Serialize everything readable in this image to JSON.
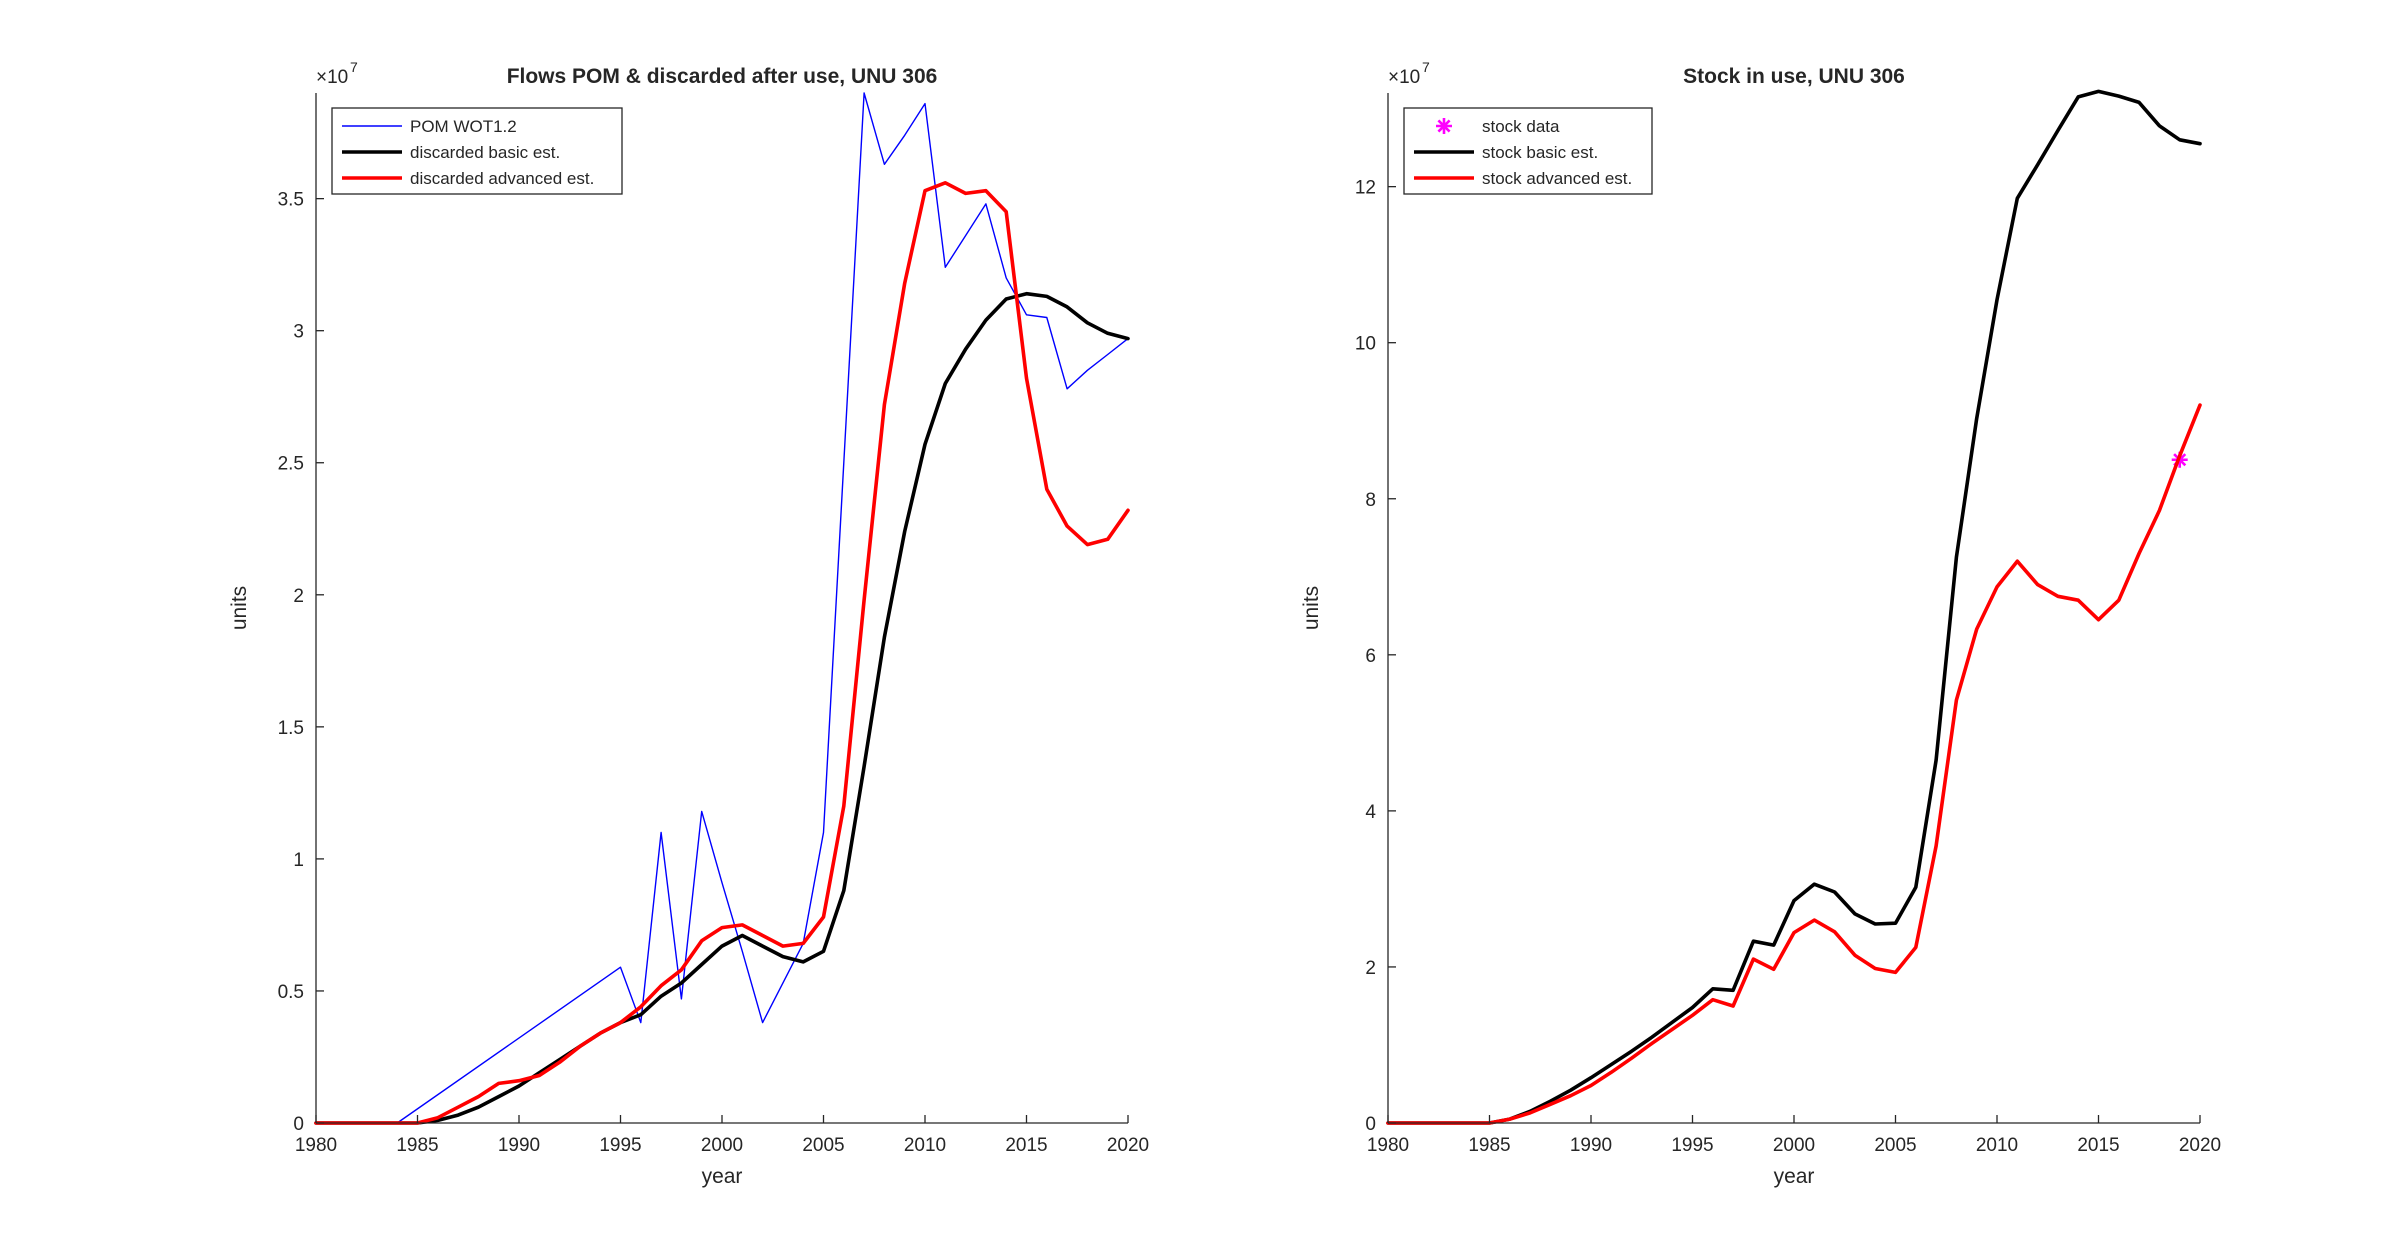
{
  "chart_data": [
    {
      "type": "line",
      "title": "Flows POM & discarded after use, UNU 306",
      "xlabel": "year",
      "ylabel": "units",
      "exponent_label": "×10",
      "exponent_power": "7",
      "xlim": [
        1980,
        2020
      ],
      "ylim": [
        0,
        3.9
      ],
      "x_ticks": [
        1980,
        1985,
        1990,
        1995,
        2000,
        2005,
        2010,
        2015,
        2020
      ],
      "x_tick_labels": [
        "1980",
        "1985",
        "1990",
        "1995",
        "2000",
        "2005",
        "2010",
        "2015",
        "2020"
      ],
      "y_ticks": [
        0,
        0.5,
        1,
        1.5,
        2,
        2.5,
        3,
        3.5
      ],
      "y_tick_labels": [
        "0",
        "0.5",
        "1",
        "1.5",
        "2",
        "2.5",
        "3",
        "3.5"
      ],
      "grid": false,
      "legend_position": "top-left",
      "series": [
        {
          "name": "POM WOT1.2",
          "color": "#0000ff",
          "style": "thin-line",
          "x": [
            1984,
            1995,
            1996,
            1997,
            1998,
            1999,
            2000,
            2001,
            2002,
            2004,
            2005,
            2006,
            2007,
            2008,
            2009,
            2010,
            2011,
            2012,
            2013,
            2014,
            2015,
            2016,
            2017,
            2018,
            2019,
            2020
          ],
          "y": [
            0,
            0.59,
            0.38,
            1.1,
            0.47,
            1.18,
            0.91,
            0.65,
            0.38,
            0.68,
            1.1,
            2.5,
            3.9,
            3.63,
            3.74,
            3.86,
            3.24,
            3.36,
            3.48,
            3.2,
            3.06,
            3.05,
            2.78,
            2.85,
            2.91,
            2.97
          ]
        },
        {
          "name": "discarded basic est.",
          "color": "#000000",
          "style": "thick-line",
          "x": [
            1980,
            1985,
            1986,
            1987,
            1988,
            1989,
            1990,
            1991,
            1992,
            1993,
            1994,
            1995,
            1996,
            1997,
            1998,
            1999,
            2000,
            2001,
            2002,
            2003,
            2004,
            2005,
            2006,
            2007,
            2008,
            2009,
            2010,
            2011,
            2012,
            2013,
            2014,
            2015,
            2016,
            2017,
            2018,
            2019,
            2020
          ],
          "y": [
            0,
            0,
            0.01,
            0.03,
            0.06,
            0.1,
            0.14,
            0.19,
            0.24,
            0.29,
            0.34,
            0.38,
            0.41,
            0.48,
            0.53,
            0.6,
            0.67,
            0.71,
            0.67,
            0.63,
            0.61,
            0.65,
            0.88,
            1.35,
            1.84,
            2.24,
            2.57,
            2.8,
            2.93,
            3.04,
            3.12,
            3.14,
            3.13,
            3.09,
            3.03,
            2.99,
            2.97
          ]
        },
        {
          "name": "discarded advanced est.",
          "color": "#ff0000",
          "style": "thick-line",
          "x": [
            1980,
            1985,
            1986,
            1987,
            1988,
            1989,
            1990,
            1991,
            1992,
            1993,
            1994,
            1995,
            1996,
            1997,
            1998,
            1999,
            2000,
            2001,
            2002,
            2003,
            2004,
            2005,
            2006,
            2007,
            2008,
            2009,
            2010,
            2011,
            2012,
            2013,
            2014,
            2015,
            2016,
            2017,
            2018,
            2019,
            2020
          ],
          "y": [
            0,
            0,
            0.02,
            0.06,
            0.1,
            0.15,
            0.16,
            0.18,
            0.23,
            0.29,
            0.34,
            0.38,
            0.44,
            0.52,
            0.58,
            0.69,
            0.74,
            0.75,
            0.71,
            0.67,
            0.68,
            0.78,
            1.2,
            1.98,
            2.72,
            3.18,
            3.53,
            3.56,
            3.52,
            3.53,
            3.45,
            2.82,
            2.4,
            2.26,
            2.19,
            2.21,
            2.32
          ]
        }
      ]
    },
    {
      "type": "line",
      "title": "Stock in use, UNU 306",
      "xlabel": "year",
      "ylabel": "units",
      "exponent_label": "×10",
      "exponent_power": "7",
      "xlim": [
        1980,
        2020
      ],
      "ylim": [
        0,
        13.2
      ],
      "x_ticks": [
        1980,
        1985,
        1990,
        1995,
        2000,
        2005,
        2010,
        2015,
        2020
      ],
      "x_tick_labels": [
        "1980",
        "1985",
        "1990",
        "1995",
        "2000",
        "2005",
        "2010",
        "2015",
        "2020"
      ],
      "y_ticks": [
        0,
        2,
        4,
        6,
        8,
        10,
        12
      ],
      "y_tick_labels": [
        "0",
        "2",
        "4",
        "6",
        "8",
        "10",
        "12"
      ],
      "grid": false,
      "legend_position": "top-left",
      "series": [
        {
          "name": "stock data",
          "color": "#ff00ff",
          "style": "star-marker",
          "x": [
            2019
          ],
          "y": [
            8.5
          ]
        },
        {
          "name": "stock basic est.",
          "color": "#000000",
          "style": "thick-line",
          "x": [
            1980,
            1985,
            1986,
            1987,
            1988,
            1989,
            1990,
            1991,
            1992,
            1993,
            1994,
            1995,
            1996,
            1997,
            1998,
            1999,
            2000,
            2001,
            2002,
            2003,
            2004,
            2005,
            2006,
            2007,
            2008,
            2009,
            2010,
            2011,
            2012,
            2013,
            2014,
            2015,
            2016,
            2017,
            2018,
            2019,
            2020
          ],
          "y": [
            0,
            0,
            0.05,
            0.15,
            0.28,
            0.42,
            0.58,
            0.75,
            0.92,
            1.1,
            1.29,
            1.48,
            1.72,
            1.7,
            2.33,
            2.28,
            2.85,
            3.06,
            2.96,
            2.68,
            2.55,
            2.56,
            3.02,
            4.65,
            7.25,
            9.03,
            10.55,
            11.85,
            12.28,
            12.72,
            13.15,
            13.22,
            13.16,
            13.08,
            12.78,
            12.6,
            12.55
          ]
        },
        {
          "name": "stock advanced est.",
          "color": "#ff0000",
          "style": "thick-line",
          "x": [
            1980,
            1985,
            1986,
            1987,
            1988,
            1989,
            1990,
            1991,
            1992,
            1993,
            1994,
            1995,
            1996,
            1997,
            1998,
            1999,
            2000,
            2001,
            2002,
            2003,
            2004,
            2005,
            2006,
            2007,
            2008,
            2009,
            2010,
            2011,
            2012,
            2013,
            2014,
            2015,
            2016,
            2017,
            2018,
            2019,
            2020
          ],
          "y": [
            0,
            0,
            0.05,
            0.13,
            0.24,
            0.35,
            0.48,
            0.65,
            0.83,
            1.02,
            1.2,
            1.38,
            1.58,
            1.5,
            2.1,
            1.97,
            2.44,
            2.6,
            2.45,
            2.15,
            1.98,
            1.93,
            2.25,
            3.55,
            5.42,
            6.33,
            6.87,
            7.2,
            6.9,
            6.75,
            6.7,
            6.45,
            6.7,
            7.3,
            7.85,
            8.55,
            9.2
          ]
        }
      ]
    }
  ]
}
